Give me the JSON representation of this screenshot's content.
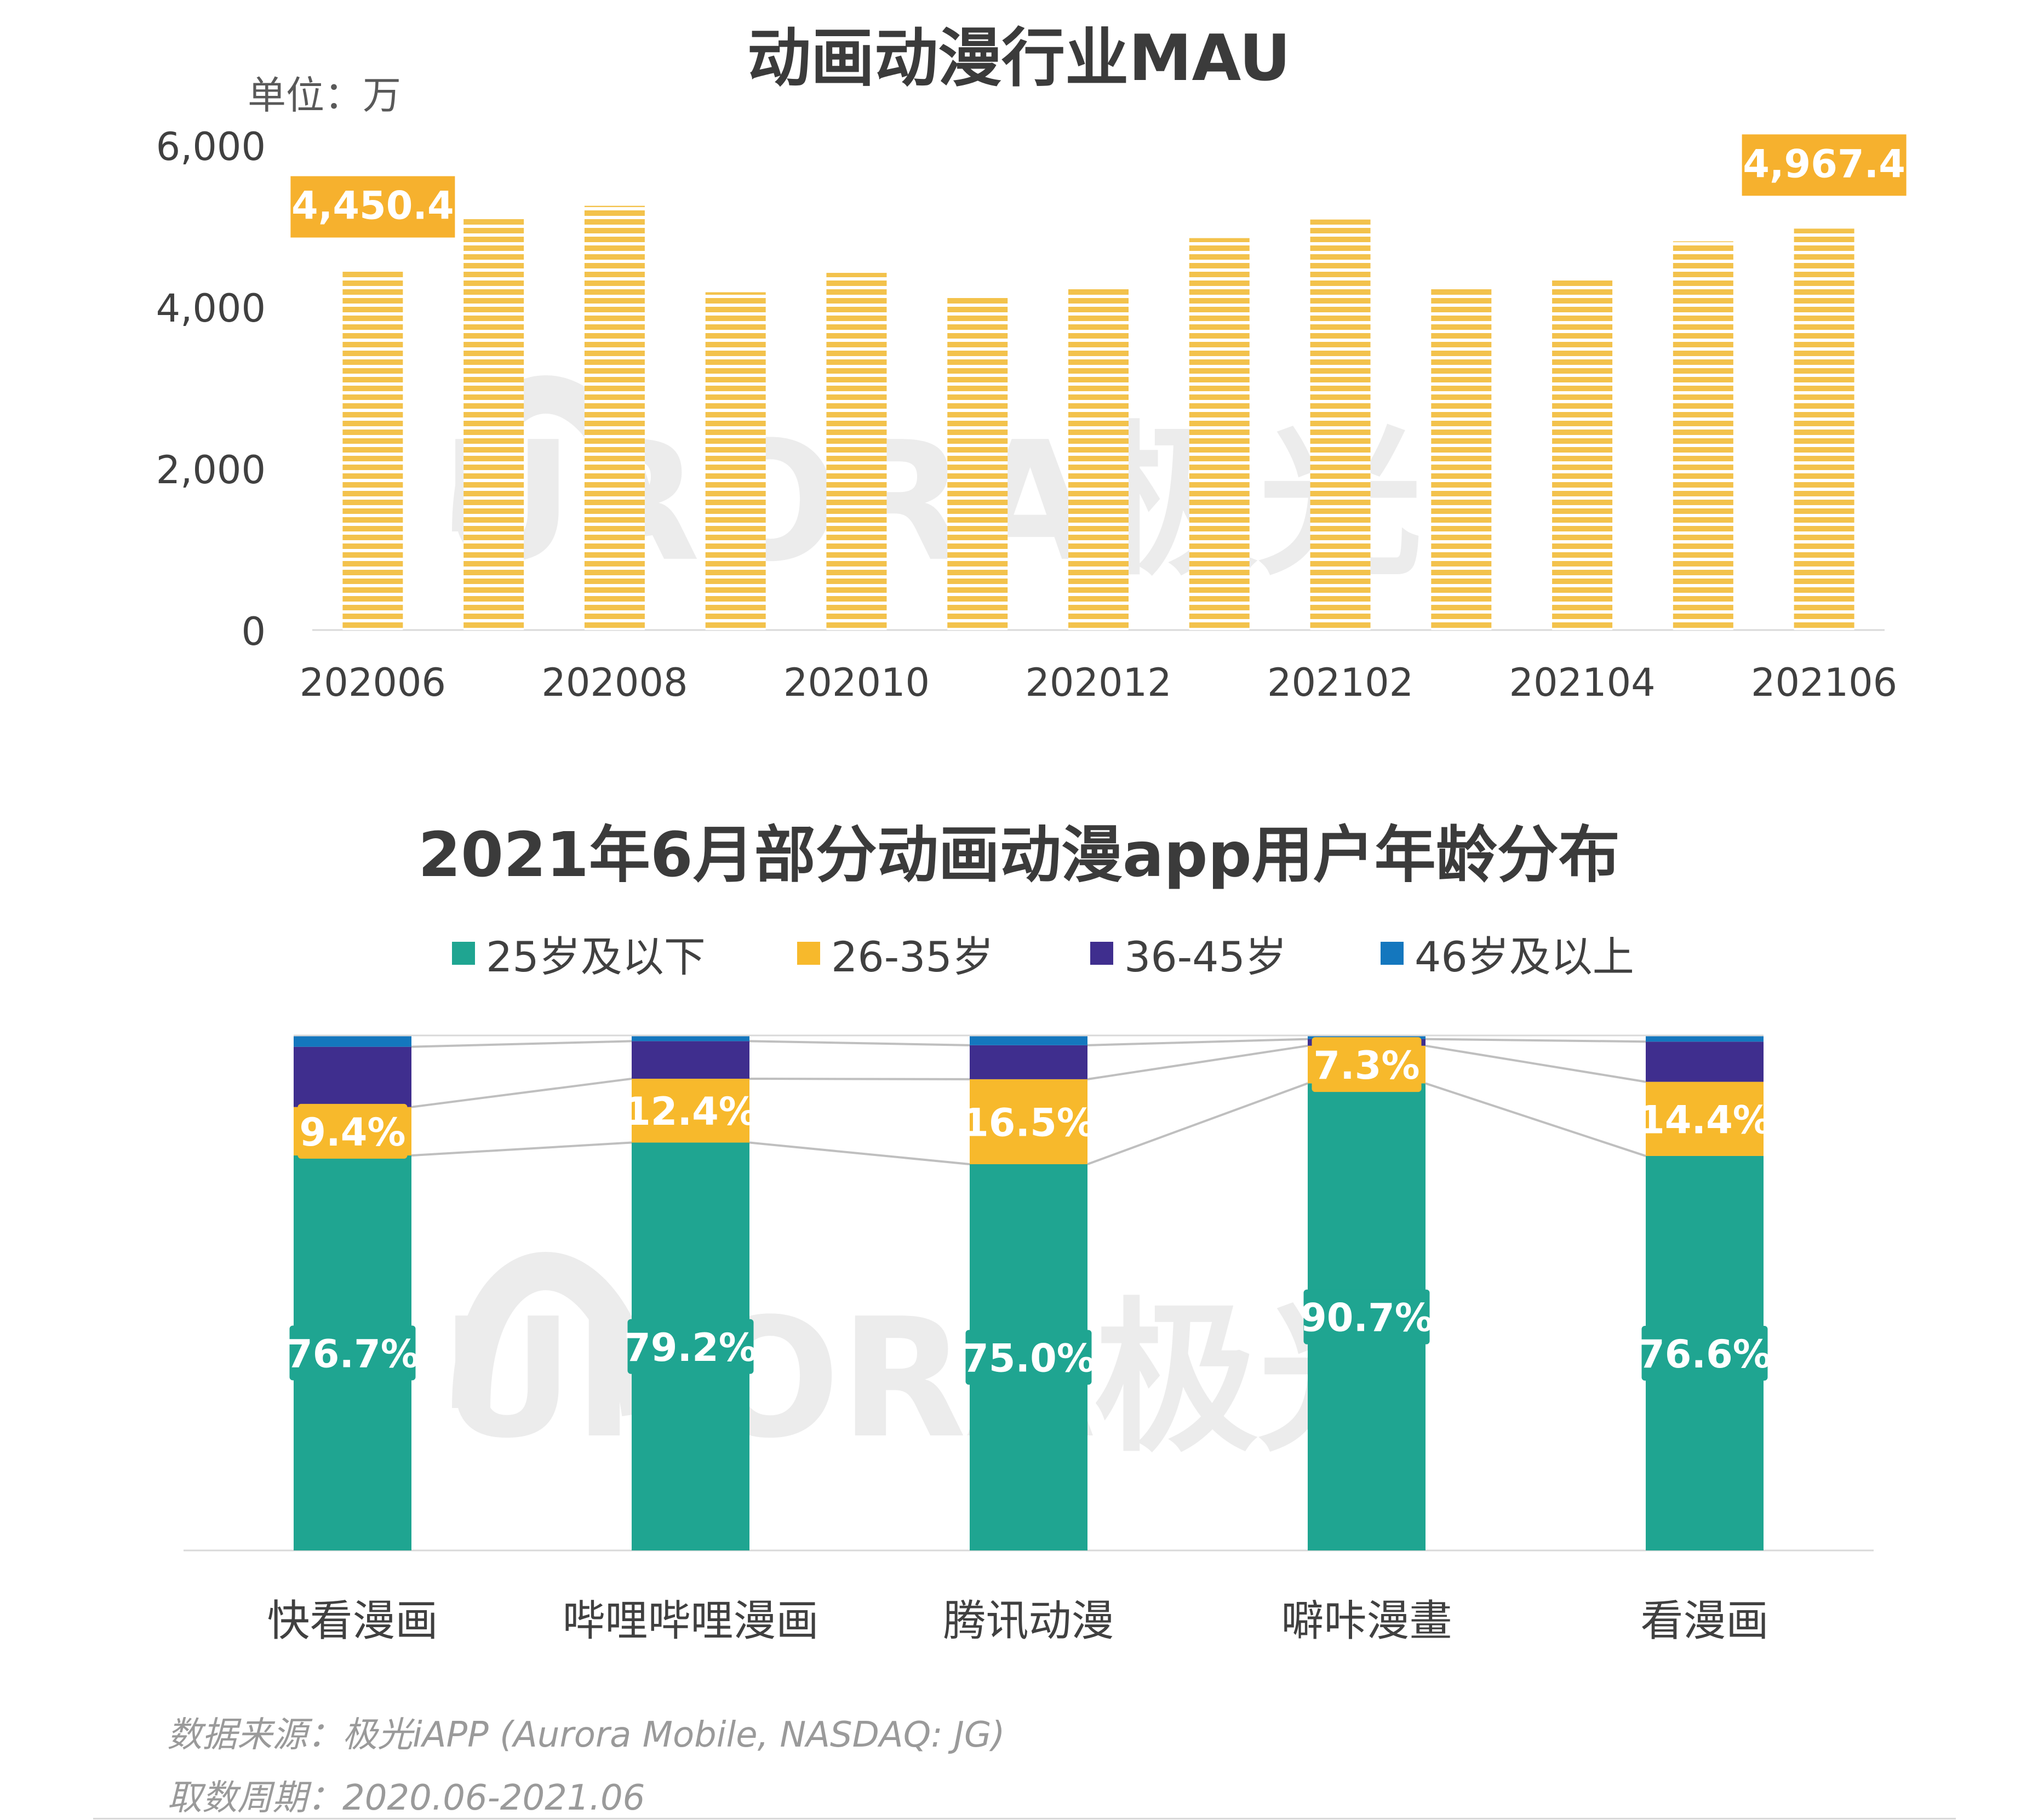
{
  "chart_data": [
    {
      "type": "bar",
      "title": "动画动漫行业MAU",
      "unit_label": "单位：万",
      "categories": [
        "202006",
        "202007",
        "202008",
        "202009",
        "202010",
        "202011",
        "202012",
        "202101",
        "202102",
        "202103",
        "202104",
        "202105",
        "202106"
      ],
      "x_tick_labels": [
        "202006",
        "202008",
        "202010",
        "202012",
        "202102",
        "202104",
        "202106"
      ],
      "values": [
        4450.4,
        5100,
        5250,
        4180,
        4420,
        4120,
        4220,
        4850,
        5080,
        4230,
        4360,
        4810,
        4967.4
      ],
      "data_labels": [
        {
          "category": "202006",
          "text": "4,450.4"
        },
        {
          "category": "202106",
          "text": "4,967.4"
        }
      ],
      "y_ticks": [
        "0",
        "2,000",
        "4,000",
        "6,000"
      ],
      "ylim": [
        0,
        6000
      ],
      "bar_color": "#F3C24C",
      "label_bg": "#F6B12E"
    },
    {
      "type": "bar",
      "stacked": true,
      "title": "2021年6月部分动画动漫app用户年龄分布",
      "categories": [
        "快看漫画",
        "哔哩哔哩漫画",
        "腾讯动漫",
        "噼咔漫畫",
        "看漫画"
      ],
      "series": [
        {
          "name": "25岁及以下",
          "color": "#1FA591",
          "values": [
            76.7,
            79.2,
            75.0,
            90.7,
            76.6
          ],
          "labels": [
            "76.7%",
            "79.2%",
            "75.0%",
            "90.7%",
            "76.6%"
          ]
        },
        {
          "name": "26-35岁",
          "color": "#F7B92C",
          "values": [
            9.4,
            12.4,
            16.5,
            7.3,
            14.4
          ],
          "labels": [
            "9.4%",
            "12.4%",
            "16.5%",
            "7.3%",
            "14.4%"
          ]
        },
        {
          "name": "36-45岁",
          "color": "#3F2E8E",
          "values": [
            11.7,
            7.3,
            6.6,
            1.3,
            7.8
          ]
        },
        {
          "name": "46岁及以上",
          "color": "#1477BE",
          "values": [
            2.2,
            1.1,
            1.9,
            0.7,
            1.2
          ]
        }
      ],
      "ylim": [
        0,
        100
      ]
    }
  ],
  "watermark": "URORA极光",
  "footer": {
    "source": "数据来源：极光iAPP (Aurora Mobile, NASDAQ: JG)",
    "period": "取数周期：2020.06-2021.06"
  }
}
